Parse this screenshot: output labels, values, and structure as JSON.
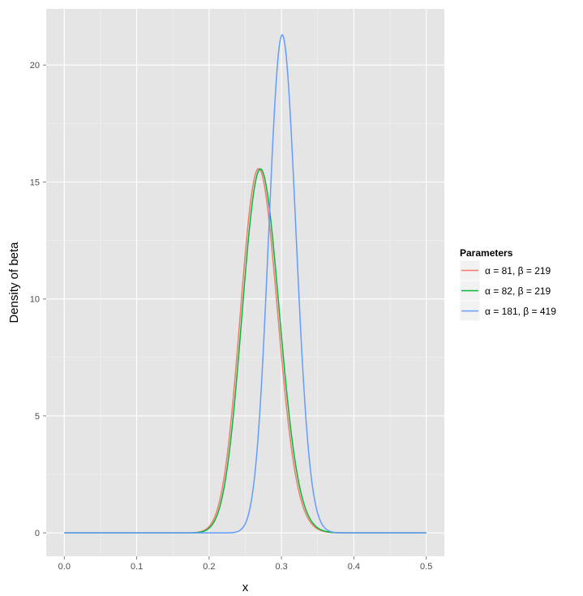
{
  "chart_data": {
    "type": "line",
    "title": "",
    "xlabel": "x",
    "ylabel": "Density of beta",
    "xlim": [
      -0.025,
      0.525
    ],
    "ylim": [
      -1.0,
      22.4
    ],
    "x_ticks": [
      0.0,
      0.1,
      0.2,
      0.3,
      0.4,
      0.5
    ],
    "x_tick_labels": [
      "0.0",
      "0.1",
      "0.2",
      "0.3",
      "0.4",
      "0.5"
    ],
    "y_ticks": [
      0,
      5,
      10,
      15,
      20
    ],
    "y_tick_labels": [
      "0",
      "5",
      "10",
      "15",
      "20"
    ],
    "x_range": [
      0.0,
      0.5
    ],
    "grid": true,
    "background": "#e5e5e5",
    "legend": {
      "title": "Parameters",
      "position": "right"
    },
    "series": [
      {
        "name": "α = 81, β = 219",
        "alpha": 81,
        "beta": 219,
        "color": "#f8766d"
      },
      {
        "name": "α = 82, β = 219",
        "alpha": 82,
        "beta": 219,
        "color": "#00ba38"
      },
      {
        "name": "α = 181, β = 419",
        "alpha": 181,
        "beta": 419,
        "color": "#619cff"
      }
    ]
  }
}
